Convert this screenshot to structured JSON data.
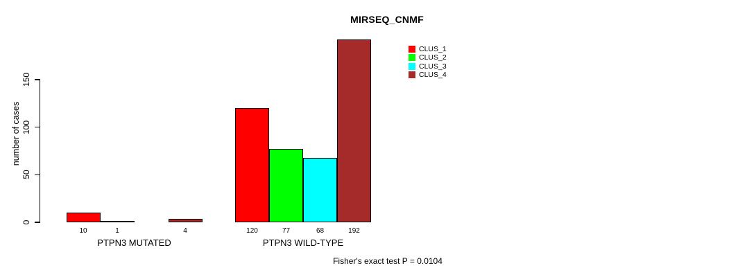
{
  "chart_data": {
    "type": "bar",
    "title": "MIRSEQ_CNMF",
    "ylabel": "number of cases",
    "xlabel": "",
    "ylim": [
      0,
      150
    ],
    "yticks": [
      0,
      50,
      100,
      150
    ],
    "grid": false,
    "legend_position": "top-right",
    "categories": [
      "PTPN3 MUTATED",
      "PTPN3 WILD-TYPE"
    ],
    "series": [
      {
        "name": "CLUS_1",
        "color": "#FF0000",
        "values": [
          10,
          120
        ]
      },
      {
        "name": "CLUS_2",
        "color": "#00FF00",
        "values": [
          1,
          77
        ]
      },
      {
        "name": "CLUS_3",
        "color": "#00FFFF",
        "values": [
          0,
          68
        ]
      },
      {
        "name": "CLUS_4",
        "color": "#A52A2A",
        "values": [
          4,
          192
        ]
      }
    ],
    "bar_value_labels": [
      [
        "10",
        "1",
        "",
        "4"
      ],
      [
        "120",
        "77",
        "68",
        "192"
      ]
    ],
    "annotation": "Fisher's exact test P = 0.0104"
  }
}
